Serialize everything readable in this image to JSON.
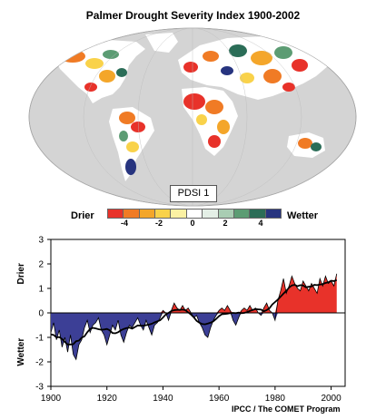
{
  "title": "Palmer Drought Severity Index 1900-2002",
  "map": {
    "label": "PDSI 1",
    "ocean_color": "#d4d4d4",
    "land_base_color": "#ffffff"
  },
  "legend": {
    "left_label": "Drier",
    "right_label": "Wetter",
    "ticks": [
      "-4",
      "-2",
      "0",
      "2",
      "4"
    ],
    "colors": [
      "#e8322a",
      "#f07b25",
      "#f4a62a",
      "#f9d24a",
      "#fbf1a3",
      "#ffffff",
      "#e4efe6",
      "#a9cdb3",
      "#5c9c73",
      "#2b6d57",
      "#27347f"
    ]
  },
  "credit": "IPCC / The COMET Program",
  "chart_data": {
    "type": "area",
    "xlim": [
      1900,
      2005
    ],
    "ylim": [
      -3,
      3
    ],
    "x_ticks": [
      "1900",
      "1920",
      "1940",
      "1960",
      "1980",
      "2000"
    ],
    "y_ticks": [
      "-3",
      "-2",
      "-1",
      "0",
      "1",
      "2",
      "3"
    ],
    "upper_label": "Drier",
    "lower_label": "Wetter",
    "positive_color": "#e8322a",
    "negative_color": "#3c3f96",
    "series": [
      {
        "x": [
          1900,
          1901,
          1902,
          1903,
          1904,
          1905,
          1906,
          1907,
          1908,
          1909,
          1910,
          1911,
          1912,
          1913,
          1914,
          1915,
          1916,
          1917,
          1918,
          1919,
          1920,
          1921,
          1922,
          1923,
          1924,
          1925,
          1926,
          1927,
          1928,
          1929,
          1930,
          1931,
          1932,
          1933,
          1934,
          1935,
          1936,
          1937,
          1938,
          1939,
          1940,
          1941,
          1942,
          1943,
          1944,
          1945,
          1946,
          1947,
          1948,
          1949,
          1950,
          1951,
          1952,
          1953,
          1954,
          1955,
          1956,
          1957,
          1958,
          1959,
          1960,
          1961,
          1962,
          1963,
          1964,
          1965,
          1966,
          1967,
          1968,
          1969,
          1970,
          1971,
          1972,
          1973,
          1974,
          1975,
          1976,
          1977,
          1978,
          1979,
          1980,
          1981,
          1982,
          1983,
          1984,
          1985,
          1986,
          1987,
          1988,
          1989,
          1990,
          1991,
          1992,
          1993,
          1994,
          1995,
          1996,
          1997,
          1998,
          1999,
          2000,
          2001,
          2002
        ],
        "values": [
          -0.8,
          -0.4,
          -1.1,
          -0.7,
          -1.4,
          -1.0,
          -1.6,
          -0.9,
          -1.7,
          -1.9,
          -1.3,
          -1.1,
          -0.6,
          -0.3,
          -0.8,
          -0.5,
          -0.4,
          -0.2,
          -0.7,
          -0.9,
          -1.3,
          -0.9,
          -0.5,
          -0.7,
          -0.3,
          -0.9,
          -1.2,
          -0.8,
          -0.5,
          -0.6,
          -0.4,
          -0.2,
          -0.5,
          -0.7,
          -0.3,
          -0.6,
          -0.9,
          -0.5,
          -0.4,
          -0.2,
          0.1,
          0.0,
          -0.3,
          0.1,
          0.4,
          0.2,
          0.1,
          0.3,
          0.1,
          0.2,
          0.0,
          -0.2,
          -0.1,
          -0.4,
          -0.6,
          -0.9,
          -1.0,
          -0.6,
          -0.3,
          -0.1,
          0.1,
          0.2,
          0.1,
          0.3,
          0.1,
          -0.3,
          -0.5,
          -0.2,
          0.1,
          0.2,
          0.1,
          0.3,
          0.1,
          0.2,
          0.0,
          -0.1,
          0.2,
          0.4,
          0.1,
          0.0,
          -0.3,
          0.5,
          0.9,
          1.4,
          0.8,
          1.1,
          1.5,
          1.2,
          1.0,
          0.9,
          1.3,
          1.1,
          0.9,
          1.2,
          1.0,
          0.8,
          1.4,
          1.1,
          1.5,
          1.2,
          1.3,
          1.1,
          1.6
        ]
      }
    ]
  }
}
